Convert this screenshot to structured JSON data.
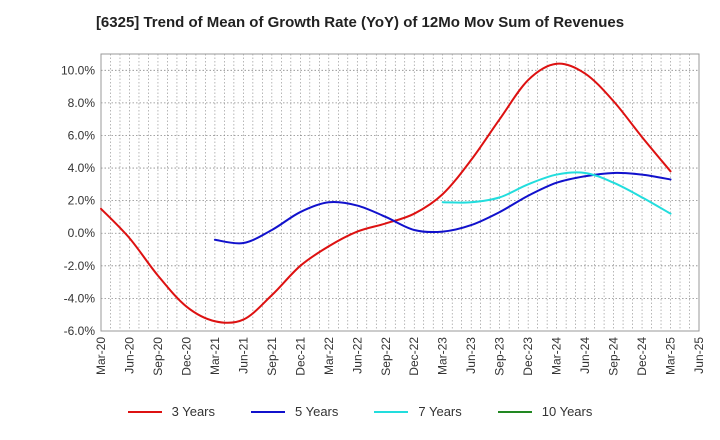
{
  "chart_data": {
    "type": "line",
    "title": "[6325]  Trend of Mean of Growth Rate (YoY) of 12Mo Mov Sum of Revenues",
    "xlabel": "",
    "ylabel": "",
    "ylim": [
      -6.0,
      11.0
    ],
    "yticks": [
      -6.0,
      -4.0,
      -2.0,
      0.0,
      2.0,
      4.0,
      6.0,
      8.0,
      10.0
    ],
    "ytick_labels": [
      "-6.0%",
      "-4.0%",
      "-2.0%",
      "0.0%",
      "2.0%",
      "4.0%",
      "6.0%",
      "8.0%",
      "10.0%"
    ],
    "xticks": [
      "Mar-20",
      "Jun-20",
      "Sep-20",
      "Dec-20",
      "Mar-21",
      "Jun-21",
      "Sep-21",
      "Dec-21",
      "Mar-22",
      "Jun-22",
      "Sep-22",
      "Dec-22",
      "Mar-23",
      "Jun-23",
      "Sep-23",
      "Dec-23",
      "Mar-24",
      "Jun-24",
      "Sep-24",
      "Dec-24",
      "Mar-25",
      "Jun-25"
    ],
    "grid": true,
    "legend_position": "bottom",
    "series": [
      {
        "name": "3 Years",
        "color": "#dd1111",
        "x_start": 0,
        "values": [
          1.5,
          -0.3,
          -2.6,
          -4.5,
          -5.4,
          -5.3,
          -3.8,
          -2.0,
          -0.8,
          0.1,
          0.6,
          1.2,
          2.4,
          4.5,
          7.0,
          9.4,
          10.4,
          9.8,
          8.1,
          5.9,
          3.8
        ]
      },
      {
        "name": "5 Years",
        "color": "#1111cc",
        "x_start": 4,
        "values": [
          -0.4,
          -0.6,
          0.2,
          1.3,
          1.9,
          1.7,
          1.0,
          0.2,
          0.1,
          0.5,
          1.3,
          2.3,
          3.1,
          3.5,
          3.7,
          3.6,
          3.3
        ]
      },
      {
        "name": "7 Years",
        "color": "#22dddd",
        "x_start": 12,
        "values": [
          1.9,
          1.9,
          2.2,
          3.0,
          3.6,
          3.7,
          3.1,
          2.2,
          1.2
        ]
      },
      {
        "name": "10 Years",
        "color": "#228822",
        "x_start": 0,
        "values": []
      }
    ]
  }
}
